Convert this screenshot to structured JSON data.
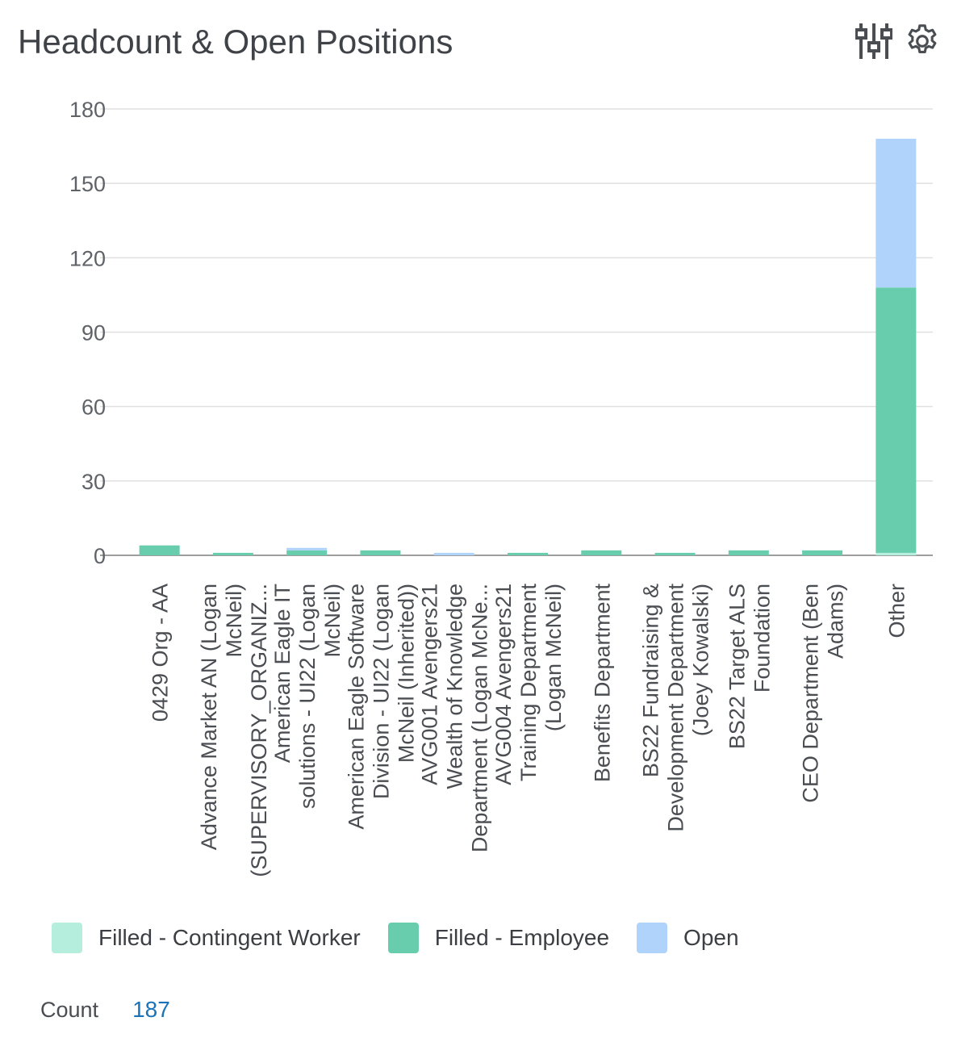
{
  "header": {
    "title": "Headcount & Open Positions",
    "filter_icon": "sliders-icon",
    "settings_icon": "gear-icon"
  },
  "chart_data": {
    "type": "bar",
    "stacked": true,
    "categories": [
      [
        "0429 Org - AA"
      ],
      [
        "Advance Market AN (Logan",
        "McNeil)",
        "(SUPERVISORY_ORGANIZ..."
      ],
      [
        "American Eagle IT",
        "solutions - UI22 (Logan",
        "McNeil)"
      ],
      [
        "American Eagle Software",
        "Division - UI22 (Logan",
        "McNeil (Inherited))"
      ],
      [
        "AVG001 Avengers21",
        "Wealth of Knowledge",
        "Department (Logan McNe..."
      ],
      [
        "AVG004 Avengers21",
        "Training Department",
        "(Logan McNeil)"
      ],
      [
        "Benefits Department"
      ],
      [
        "BS22 Fundraising &",
        "Development Department",
        "(Joey Kowalski)"
      ],
      [
        "BS22 Target ALS",
        "Foundation"
      ],
      [
        "CEO Department (Ben",
        "Adams)"
      ],
      [
        "Other"
      ]
    ],
    "series": [
      {
        "name": "Filled - Contingent Worker",
        "color": "#b5eedc",
        "values": [
          0,
          0,
          0,
          0,
          0,
          0,
          0,
          0,
          0,
          0,
          1
        ]
      },
      {
        "name": "Filled - Employee",
        "color": "#68cdad",
        "values": [
          4,
          1,
          2,
          2,
          0,
          1,
          2,
          1,
          2,
          2,
          107
        ]
      },
      {
        "name": "Open",
        "color": "#b0d3fb",
        "values": [
          0,
          0,
          1,
          0,
          1,
          0,
          0,
          0,
          0,
          0,
          60
        ]
      }
    ],
    "yticks": [
      0,
      30,
      60,
      90,
      120,
      150,
      180
    ],
    "ylim": [
      0,
      180
    ],
    "grid": true,
    "legend_position": "bottom"
  },
  "footer": {
    "count_label": "Count",
    "count_value": "187"
  }
}
